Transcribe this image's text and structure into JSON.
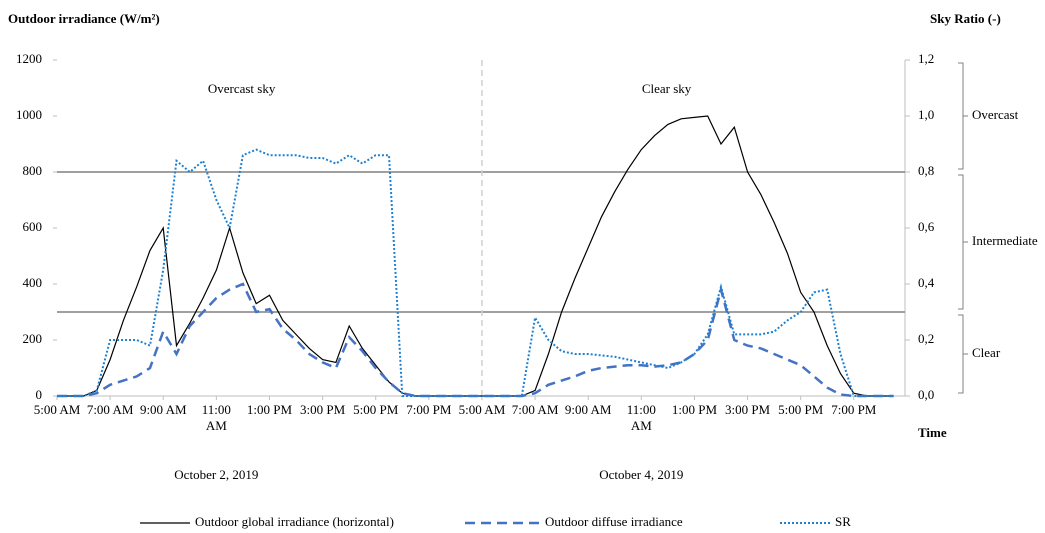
{
  "chart_data": {
    "type": "line",
    "title": "Outdoor irradiance (W/m²)",
    "y2_title": "Sky Ratio (-)",
    "x_title": "Time",
    "categories": [
      "5:00 AM",
      null,
      null,
      null,
      "7:00 AM",
      null,
      null,
      null,
      "9:00 AM",
      null,
      null,
      null,
      "11:00 AM",
      null,
      null,
      null,
      "1:00 PM",
      null,
      null,
      null,
      "3:00 PM",
      null,
      null,
      null,
      "5:00 PM",
      null,
      null,
      null,
      "7:00 PM",
      null,
      null,
      null,
      "5:00 AM",
      null,
      null,
      null,
      "7:00 AM",
      null,
      null,
      null,
      "9:00 AM",
      null,
      null,
      null,
      "11:00 AM",
      null,
      null,
      null,
      "1:00 PM",
      null,
      null,
      null,
      "3:00 PM",
      null,
      null,
      null,
      "5:00 PM",
      null,
      null,
      null,
      "7:00 PM",
      null,
      null,
      null
    ],
    "days": [
      {
        "date": "October 2, 2019",
        "sky": "Overcast sky"
      },
      {
        "date": "October 4, 2019",
        "sky": "Clear sky"
      }
    ],
    "series": [
      {
        "name": "Outdoor global irradiance (horizontal)",
        "color": "#000000",
        "style": "solid",
        "values": [
          0,
          0,
          0,
          20,
          130,
          270,
          390,
          520,
          600,
          180,
          260,
          350,
          450,
          600,
          440,
          330,
          360,
          270,
          220,
          170,
          130,
          120,
          250,
          170,
          110,
          50,
          10,
          0,
          0,
          0,
          0,
          0,
          0,
          0,
          0,
          0,
          20,
          150,
          300,
          420,
          530,
          640,
          730,
          810,
          880,
          930,
          970,
          990,
          995,
          1000,
          900,
          960,
          800,
          720,
          620,
          510,
          370,
          300,
          180,
          80,
          10,
          0,
          0,
          0
        ]
      },
      {
        "name": "Outdoor diffuse irradiance",
        "color": "#4472c4",
        "style": "dashed",
        "values": [
          0,
          0,
          0,
          10,
          40,
          55,
          70,
          100,
          230,
          150,
          250,
          300,
          350,
          380,
          400,
          300,
          310,
          240,
          200,
          150,
          120,
          100,
          210,
          160,
          100,
          50,
          10,
          0,
          0,
          0,
          0,
          0,
          0,
          0,
          0,
          0,
          10,
          40,
          55,
          70,
          90,
          100,
          105,
          110,
          110,
          105,
          110,
          120,
          150,
          200,
          380,
          200,
          180,
          170,
          150,
          130,
          110,
          70,
          30,
          5,
          0,
          0,
          0,
          0
        ]
      },
      {
        "name": "SR",
        "color": "#1f80d0",
        "style": "dotted",
        "axis": "y2",
        "values": [
          0,
          0,
          0,
          0.02,
          0.2,
          0.2,
          0.2,
          0.18,
          0.45,
          0.84,
          0.8,
          0.84,
          0.7,
          0.6,
          0.86,
          0.88,
          0.86,
          0.86,
          0.86,
          0.85,
          0.85,
          0.83,
          0.86,
          0.83,
          0.86,
          0.86,
          0,
          0,
          0,
          0,
          0,
          0,
          0,
          0,
          0,
          0,
          0.28,
          0.2,
          0.16,
          0.15,
          0.15,
          0.145,
          0.14,
          0.13,
          0.12,
          0.11,
          0.1,
          0.12,
          0.15,
          0.22,
          0.39,
          0.22,
          0.22,
          0.22,
          0.23,
          0.27,
          0.3,
          0.37,
          0.38,
          0.15,
          0,
          0,
          0,
          0
        ]
      }
    ],
    "ylim": [
      0,
      1200
    ],
    "yticks": [
      0,
      200,
      400,
      600,
      800,
      1000,
      1200
    ],
    "y2lim": [
      0,
      1.2
    ],
    "y2ticks": [
      {
        "value": 0,
        "label": "0,0"
      },
      {
        "value": 0.2,
        "label": "0,2"
      },
      {
        "value": 0.4,
        "label": "0,4"
      },
      {
        "value": 0.6,
        "label": "0,6"
      },
      {
        "value": 0.8,
        "label": "0,8"
      },
      {
        "value": 1,
        "label": "1,0"
      },
      {
        "value": 1.2,
        "label": "1,2"
      }
    ],
    "sky_classes": [
      {
        "name": "Overcast",
        "range": [
          0.8,
          1.2
        ]
      },
      {
        "name": "Intermediate",
        "range": [
          0.3,
          0.8
        ]
      },
      {
        "name": "Clear",
        "range": [
          0,
          0.3
        ]
      }
    ],
    "legend": "bottom"
  }
}
